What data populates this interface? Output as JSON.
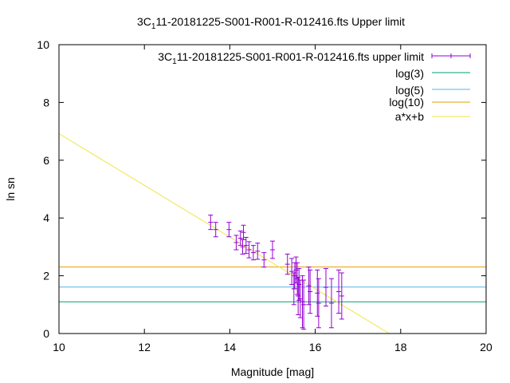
{
  "chart_data": {
    "type": "scatter",
    "title": {
      "prefix": "3C",
      "sub": "1",
      "rest": "11-20181225-S001-R001-R-012416.fts Upper limit"
    },
    "xlabel": "Magnitude [mag]",
    "ylabel": "ln sn",
    "xlim": [
      10,
      20
    ],
    "ylim": [
      0,
      10
    ],
    "x_ticks": [
      "10",
      "12",
      "14",
      "16",
      "18",
      "20"
    ],
    "y_ticks": [
      "0",
      "2",
      "4",
      "6",
      "8",
      "10"
    ],
    "legend_position": "top-right",
    "grid": false,
    "series": [
      {
        "name": {
          "prefix": "3C",
          "sub": "1",
          "rest": "11-20181225-S001-R001-R-012416.fts upper limit"
        },
        "kind": "errorbars",
        "color": "#9400d3",
        "points": [
          {
            "x": 13.55,
            "y": 3.85,
            "err": 0.25
          },
          {
            "x": 13.67,
            "y": 3.6,
            "err": 0.25
          },
          {
            "x": 13.98,
            "y": 3.6,
            "err": 0.25
          },
          {
            "x": 14.15,
            "y": 3.15,
            "err": 0.25
          },
          {
            "x": 14.25,
            "y": 3.3,
            "err": 0.25
          },
          {
            "x": 14.3,
            "y": 3.0,
            "err": 0.25
          },
          {
            "x": 14.32,
            "y": 3.5,
            "err": 0.25
          },
          {
            "x": 14.38,
            "y": 3.05,
            "err": 0.28
          },
          {
            "x": 14.45,
            "y": 2.9,
            "err": 0.28
          },
          {
            "x": 14.55,
            "y": 2.8,
            "err": 0.25
          },
          {
            "x": 14.65,
            "y": 2.85,
            "err": 0.28
          },
          {
            "x": 14.8,
            "y": 2.55,
            "err": 0.25
          },
          {
            "x": 15.0,
            "y": 2.9,
            "err": 0.3
          },
          {
            "x": 15.35,
            "y": 2.4,
            "err": 0.35
          },
          {
            "x": 15.45,
            "y": 2.15,
            "err": 0.45
          },
          {
            "x": 15.5,
            "y": 1.55,
            "err": 0.55
          },
          {
            "x": 15.52,
            "y": 2.0,
            "err": 0.45
          },
          {
            "x": 15.55,
            "y": 2.2,
            "err": 0.45
          },
          {
            "x": 15.58,
            "y": 1.9,
            "err": 0.55
          },
          {
            "x": 15.6,
            "y": 1.3,
            "err": 0.65
          },
          {
            "x": 15.62,
            "y": 1.7,
            "err": 0.55
          },
          {
            "x": 15.65,
            "y": 1.2,
            "err": 0.65
          },
          {
            "x": 15.7,
            "y": 1.1,
            "err": 0.9
          },
          {
            "x": 15.73,
            "y": 1.0,
            "err": 0.85
          },
          {
            "x": 15.85,
            "y": 1.65,
            "err": 0.65
          },
          {
            "x": 15.88,
            "y": 1.45,
            "err": 0.75
          },
          {
            "x": 16.05,
            "y": 1.4,
            "err": 0.8
          },
          {
            "x": 16.08,
            "y": 1.05,
            "err": 0.85
          },
          {
            "x": 16.25,
            "y": 1.6,
            "err": 0.65
          },
          {
            "x": 16.38,
            "y": 1.05,
            "err": 0.85
          },
          {
            "x": 16.55,
            "y": 1.45,
            "err": 0.75
          },
          {
            "x": 16.62,
            "y": 1.3,
            "err": 0.8
          }
        ]
      },
      {
        "name": "log(3)",
        "kind": "hline",
        "color": "#009e73",
        "value": 1.0986
      },
      {
        "name": "log(5)",
        "kind": "hline",
        "color": "#56b4e9",
        "value": 1.6094
      },
      {
        "name": "log(10)",
        "kind": "hline",
        "color": "#e69f00",
        "value": 2.3026
      },
      {
        "name": "a*x+b",
        "kind": "fitline",
        "color": "#f0e442",
        "a": -0.895,
        "b": 15.87
      }
    ]
  }
}
